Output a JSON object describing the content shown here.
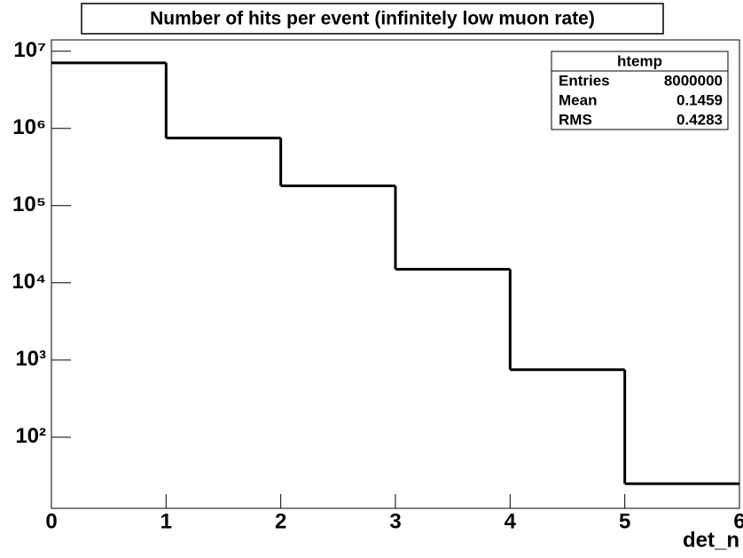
{
  "chart_data": {
    "type": "histogram",
    "title": "Number of hits per event (infinitely low muon rate)",
    "x_label": "det_n",
    "bins": [
      0,
      1,
      2,
      3,
      4,
      5,
      6
    ],
    "values": [
      7050000,
      750000,
      180000,
      15000,
      750,
      25
    ],
    "color": "#000000",
    "xlim": [
      0,
      6
    ],
    "xticks": [
      0,
      1,
      2,
      3,
      4,
      5,
      6
    ],
    "ylim": [
      12,
      14000000
    ],
    "log_y": true,
    "yticks": [
      {
        "value": 100,
        "label": "10²"
      },
      {
        "value": 1000,
        "label": "10³"
      },
      {
        "value": 10000,
        "label": "10⁴"
      },
      {
        "value": 100000,
        "label": "10⁵"
      },
      {
        "value": 1000000,
        "label": "10⁶"
      },
      {
        "value": 10000000,
        "label": "10⁷"
      }
    ],
    "stats": {
      "title": "htemp",
      "rows": [
        [
          "Entries",
          "8000000"
        ],
        [
          "Mean",
          "0.1459"
        ],
        [
          "RMS",
          "0.4283"
        ]
      ]
    }
  }
}
